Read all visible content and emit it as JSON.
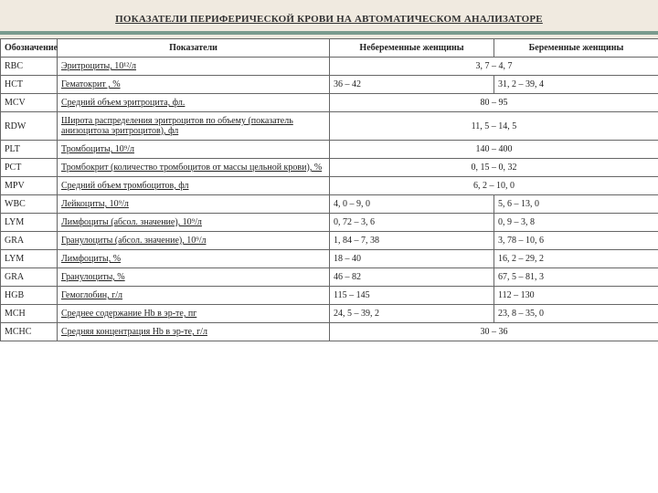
{
  "title": "ПОКАЗАТЕЛИ ПЕРИФЕРИЧЕСКОЙ КРОВИ НА АВТОМАТИЧЕСКОМ АНАЛИЗАТОРЕ",
  "columns": {
    "abbr": "Обозначение",
    "indicator": "Показатели",
    "nonpreg": "Небеременные женщины",
    "preg": "Беременные женщины"
  },
  "rows": [
    {
      "abbr": "RBC",
      "ind": "Эритроциты, 10¹²/л",
      "span": true,
      "val": "3, 7 – 4, 7"
    },
    {
      "abbr": "HCT",
      "ind": "Гематокрит , %",
      "span": false,
      "v1": "36 – 42",
      "v2": "31, 2 – 39, 4"
    },
    {
      "abbr": "MCV",
      "ind": "Средний объем эритроцита, фл.",
      "span": true,
      "val": "80 – 95"
    },
    {
      "abbr": "RDW",
      "ind": "Широта распределения эритроцитов по объему (показатель анизоцитоза эритроцитов), фл",
      "span": true,
      "val": "11, 5 – 14, 5"
    },
    {
      "abbr": "PLT",
      "ind": "Тромбоциты, 10⁹/л",
      "span": true,
      "val": "140 – 400"
    },
    {
      "abbr": "PCT",
      "ind": "Тромбокрит (количество тромбоцитов от массы цельной крови), %",
      "span": true,
      "val": "0, 15 – 0, 32"
    },
    {
      "abbr": "MPV",
      "ind": "Средний объем тромбоцитов, фл",
      "span": true,
      "val": "6, 2 – 10, 0"
    },
    {
      "abbr": "WBC",
      "ind": "Лейкоциты, 10⁹/л",
      "span": false,
      "v1": "4, 0 – 9, 0",
      "v2": "5, 6 – 13, 0"
    },
    {
      "abbr": "LYM",
      "ind": "Лимфоциты (абсол. значение), 10⁹/л",
      "span": false,
      "v1": "0, 72 – 3, 6",
      "v2": "0, 9 – 3, 8"
    },
    {
      "abbr": "GRA",
      "ind": "Гранулоциты (абсол. значение), 10⁹/л",
      "span": false,
      "v1": "1, 84 – 7, 38",
      "v2": "3, 78 – 10, 6"
    },
    {
      "abbr": "LYM",
      "ind": "Лимфоциты, %",
      "span": false,
      "v1": "18 – 40",
      "v2": "16, 2 – 29, 2"
    },
    {
      "abbr": "GRA",
      "ind": "Гранулоциты, %",
      "span": false,
      "v1": "46 – 82",
      "v2": "67, 5 – 81, 3"
    },
    {
      "abbr": "HGB",
      "ind": "Гемоглобин, г/л",
      "span": false,
      "v1": "115 – 145",
      "v2": "112 – 130"
    },
    {
      "abbr": "MCH",
      "ind": "Среднее содержание Hb в эр-те, пг",
      "span": false,
      "v1": "24, 5 – 39, 2",
      "v2": "23, 8 – 35, 0"
    },
    {
      "abbr": "MCHC",
      "ind": "Средняя концентрация Hb в эр-те, г/л",
      "span": true,
      "val": "30 – 36"
    }
  ],
  "style": {
    "title_bg": "#f0eae0",
    "accent_bar": "#7a9b8e",
    "border": "#666666",
    "font_size_body": 10,
    "font_size_title": 11
  }
}
